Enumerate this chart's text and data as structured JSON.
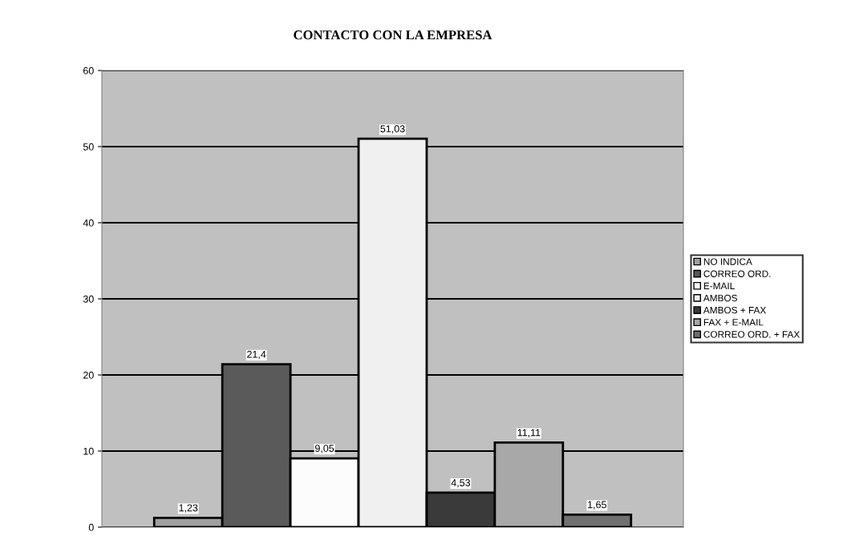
{
  "chart_data": {
    "type": "bar",
    "title": "CONTACTO CON LA EMPRESA",
    "categories": [
      null
    ],
    "series": [
      {
        "name": "NO INDICA",
        "color": "#a0a0a0",
        "values": [
          1.23
        ],
        "value_labels": [
          "1,23"
        ]
      },
      {
        "name": "CORREO ORD.",
        "color": "#5a5a5a",
        "values": [
          21.4
        ],
        "value_labels": [
          "21,4"
        ]
      },
      {
        "name": "E-MAIL",
        "color": "#fcfcfc",
        "values": [
          9.05
        ],
        "value_labels": [
          "9,05"
        ]
      },
      {
        "name": "AMBOS",
        "color": "#f0f0f0",
        "values": [
          51.03
        ],
        "value_labels": [
          "51,03"
        ]
      },
      {
        "name": "AMBOS + FAX",
        "color": "#3a3a3a",
        "values": [
          4.53
        ],
        "value_labels": [
          "4,53"
        ]
      },
      {
        "name": "FAX + E-MAIL",
        "color": "#a8a8a8",
        "values": [
          11.11
        ],
        "value_labels": [
          "11,11"
        ]
      },
      {
        "name": "CORREO ORD. + FAX",
        "color": "#707070",
        "values": [
          1.65
        ],
        "value_labels": [
          "1,65"
        ]
      }
    ],
    "ylim": [
      0,
      60
    ],
    "yticks": [
      0,
      10,
      20,
      30,
      40,
      50,
      60
    ],
    "grid": "y",
    "legend": "right"
  }
}
